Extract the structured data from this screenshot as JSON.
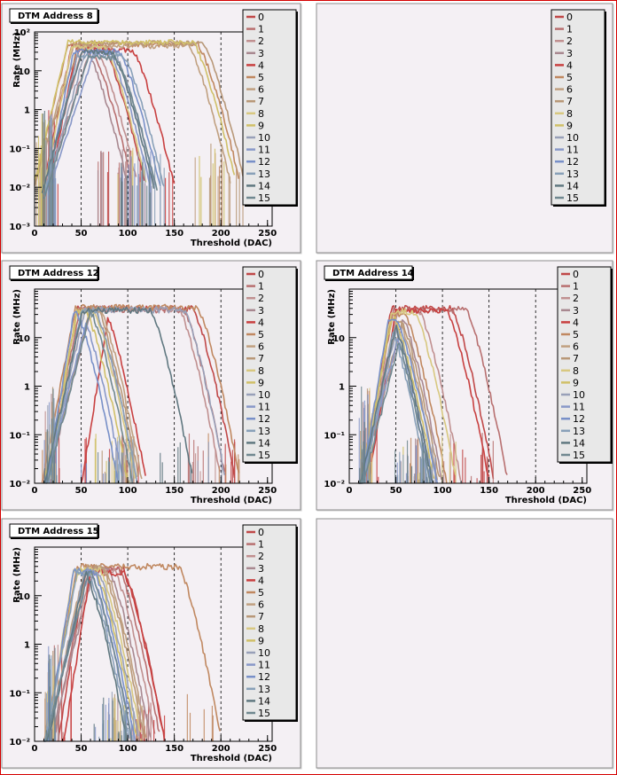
{
  "window": {
    "border_color": "#d40000",
    "pad_background": "#f4f0f4"
  },
  "legend_entries": [
    "0",
    "1",
    "2",
    "3",
    "4",
    "5",
    "6",
    "7",
    "8",
    "9",
    "10",
    "11",
    "12",
    "13",
    "14",
    "15"
  ],
  "series_colors": [
    "#c04848",
    "#b87070",
    "#c09090",
    "#a88890",
    "#c84040",
    "#c08860",
    "#c0a080",
    "#b89878",
    "#d8c880",
    "#d0c068",
    "#98a0b8",
    "#8898c8",
    "#7890c8",
    "#88a0b8",
    "#607880",
    "#708890"
  ],
  "chart_data": [
    {
      "type": "line",
      "pad": "DTM Address 8",
      "title": "DTM Address 8",
      "xlabel": "Threshold (DAC)",
      "ylabel": "Rate (MHz)",
      "xlim": [
        0,
        255
      ],
      "ylim": [
        0.001,
        100
      ],
      "log_y": true,
      "x_ticks": [
        0,
        50,
        100,
        150,
        200,
        250
      ],
      "y_ticks": [
        "10⁻³",
        "10⁻²",
        "10⁻¹",
        "1",
        "10",
        "10²"
      ],
      "grid_x": [
        50,
        100,
        150,
        200
      ],
      "legend_position": "top-right",
      "series": [
        {
          "name": "0",
          "plateau": 45,
          "start": 10,
          "end": 118
        },
        {
          "name": "1",
          "plateau": 40,
          "start": 12,
          "end": 105
        },
        {
          "name": "2",
          "plateau": 42,
          "start": 10,
          "end": 110
        },
        {
          "name": "3",
          "plateau": 38,
          "start": 12,
          "end": 100
        },
        {
          "name": "4",
          "plateau": 35,
          "start": 15,
          "end": 150
        },
        {
          "name": "5",
          "plateau": 48,
          "start": 0,
          "end": 220
        },
        {
          "name": "6",
          "plateau": 44,
          "start": 0,
          "end": 210
        },
        {
          "name": "7",
          "plateau": 52,
          "start": 0,
          "end": 225
        },
        {
          "name": "8",
          "plateau": 40,
          "start": 10,
          "end": 120
        },
        {
          "name": "9",
          "plateau": 55,
          "start": 0,
          "end": 215
        },
        {
          "name": "10",
          "plateau": 30,
          "start": 12,
          "end": 130
        },
        {
          "name": "11",
          "plateau": 28,
          "start": 15,
          "end": 125
        },
        {
          "name": "12",
          "plateau": 32,
          "start": 12,
          "end": 135
        },
        {
          "name": "13",
          "plateau": 25,
          "start": 10,
          "end": 140
        },
        {
          "name": "14",
          "plateau": 30,
          "start": 8,
          "end": 128
        },
        {
          "name": "15",
          "plateau": 22,
          "start": 10,
          "end": 132
        }
      ]
    },
    {
      "type": "line",
      "pad": "empty-top-right",
      "title": "",
      "legend_position": "top-right",
      "series": []
    },
    {
      "type": "line",
      "pad": "DTM Address 12",
      "title": "DTM Address 12",
      "xlabel": "Threshold (DAC)",
      "ylabel": "Rate (MHz)",
      "xlim": [
        0,
        255
      ],
      "ylim": [
        0.01,
        100
      ],
      "log_y": true,
      "x_ticks": [
        0,
        50,
        100,
        150,
        200,
        250
      ],
      "y_ticks": [
        "10⁻²",
        "10⁻¹",
        "1",
        "10"
      ],
      "grid_x": [
        50,
        100,
        150,
        200
      ],
      "legend_position": "top-right",
      "series": [
        {
          "name": "0",
          "plateau": 40,
          "start": 15,
          "end": 215
        },
        {
          "name": "1",
          "plateau": 38,
          "start": 12,
          "end": 205
        },
        {
          "name": "2",
          "plateau": 40,
          "start": 10,
          "end": 200
        },
        {
          "name": "3",
          "plateau": 36,
          "start": 12,
          "end": 110
        },
        {
          "name": "4",
          "plateau": 35,
          "start": 50,
          "end": 120
        },
        {
          "name": "5",
          "plateau": 42,
          "start": 8,
          "end": 220
        },
        {
          "name": "6",
          "plateau": 38,
          "start": 10,
          "end": 115
        },
        {
          "name": "7",
          "plateau": 40,
          "start": 12,
          "end": 112
        },
        {
          "name": "8",
          "plateau": 36,
          "start": 15,
          "end": 108
        },
        {
          "name": "9",
          "plateau": 35,
          "start": 10,
          "end": 100
        },
        {
          "name": "10",
          "plateau": 38,
          "start": 12,
          "end": 205
        },
        {
          "name": "11",
          "plateau": 34,
          "start": 10,
          "end": 95
        },
        {
          "name": "12",
          "plateau": 32,
          "start": 12,
          "end": 90
        },
        {
          "name": "13",
          "plateau": 35,
          "start": 14,
          "end": 110
        },
        {
          "name": "14",
          "plateau": 37,
          "start": 10,
          "end": 170
        },
        {
          "name": "15",
          "plateau": 34,
          "start": 12,
          "end": 105
        }
      ]
    },
    {
      "type": "line",
      "pad": "DTM Address 14",
      "title": "DTM Address 14",
      "xlabel": "Threshold (DAC)",
      "ylabel": "Rate (MHz)",
      "xlim": [
        0,
        255
      ],
      "ylim": [
        0.01,
        100
      ],
      "log_y": true,
      "x_ticks": [
        0,
        50,
        100,
        150,
        200,
        250
      ],
      "y_ticks": [
        "10⁻²",
        "10⁻¹",
        "1",
        "10"
      ],
      "grid_x": [
        50,
        100,
        150,
        200
      ],
      "legend_position": "top-right",
      "series": [
        {
          "name": "0",
          "plateau": 40,
          "start": 15,
          "end": 155
        },
        {
          "name": "1",
          "plateau": 38,
          "start": 12,
          "end": 170
        },
        {
          "name": "2",
          "plateau": 36,
          "start": 10,
          "end": 120
        },
        {
          "name": "3",
          "plateau": 34,
          "start": 12,
          "end": 100
        },
        {
          "name": "4",
          "plateau": 35,
          "start": 20,
          "end": 150
        },
        {
          "name": "5",
          "plateau": 30,
          "start": 10,
          "end": 105
        },
        {
          "name": "6",
          "plateau": 32,
          "start": 12,
          "end": 95
        },
        {
          "name": "7",
          "plateau": 30,
          "start": 10,
          "end": 98
        },
        {
          "name": "8",
          "plateau": 35,
          "start": 15,
          "end": 115
        },
        {
          "name": "9",
          "plateau": 28,
          "start": 10,
          "end": 92
        },
        {
          "name": "10",
          "plateau": 30,
          "start": 12,
          "end": 90
        },
        {
          "name": "11",
          "plateau": 28,
          "start": 10,
          "end": 88
        },
        {
          "name": "12",
          "plateau": 26,
          "start": 12,
          "end": 95
        },
        {
          "name": "13",
          "plateau": 28,
          "start": 14,
          "end": 85
        },
        {
          "name": "14",
          "plateau": 27,
          "start": 10,
          "end": 90
        },
        {
          "name": "15",
          "plateau": 25,
          "start": 12,
          "end": 88
        }
      ]
    },
    {
      "type": "line",
      "pad": "DTM Address 15",
      "title": "DTM Address 15",
      "xlabel": "Threshold (DAC)",
      "ylabel": "Rate (MHz)",
      "xlim": [
        0,
        255
      ],
      "ylim": [
        0.01,
        100
      ],
      "log_y": true,
      "x_ticks": [
        0,
        50,
        100,
        150,
        200,
        250
      ],
      "y_ticks": [
        "10⁻²",
        "10⁻¹",
        "1",
        "10"
      ],
      "grid_x": [
        50,
        100,
        150,
        200
      ],
      "legend_position": "top-right",
      "series": [
        {
          "name": "0",
          "plateau": 35,
          "start": 25,
          "end": 140
        },
        {
          "name": "1",
          "plateau": 36,
          "start": 20,
          "end": 135
        },
        {
          "name": "2",
          "plateau": 34,
          "start": 18,
          "end": 130
        },
        {
          "name": "3",
          "plateau": 32,
          "start": 15,
          "end": 125
        },
        {
          "name": "4",
          "plateau": 30,
          "start": 30,
          "end": 140
        },
        {
          "name": "5",
          "plateau": 40,
          "start": 10,
          "end": 200
        },
        {
          "name": "6",
          "plateau": 38,
          "start": 12,
          "end": 120
        },
        {
          "name": "7",
          "plateau": 36,
          "start": 10,
          "end": 118
        },
        {
          "name": "8",
          "plateau": 34,
          "start": 12,
          "end": 115
        },
        {
          "name": "9",
          "plateau": 32,
          "start": 10,
          "end": 110
        },
        {
          "name": "10",
          "plateau": 34,
          "start": 12,
          "end": 112
        },
        {
          "name": "11",
          "plateau": 30,
          "start": 10,
          "end": 105
        },
        {
          "name": "12",
          "plateau": 32,
          "start": 12,
          "end": 108
        },
        {
          "name": "13",
          "plateau": 30,
          "start": 10,
          "end": 102
        },
        {
          "name": "14",
          "plateau": 28,
          "start": 12,
          "end": 100
        },
        {
          "name": "15",
          "plateau": 30,
          "start": 10,
          "end": 105
        }
      ]
    },
    {
      "type": "line",
      "pad": "empty-bottom-right",
      "title": "",
      "series": []
    }
  ]
}
